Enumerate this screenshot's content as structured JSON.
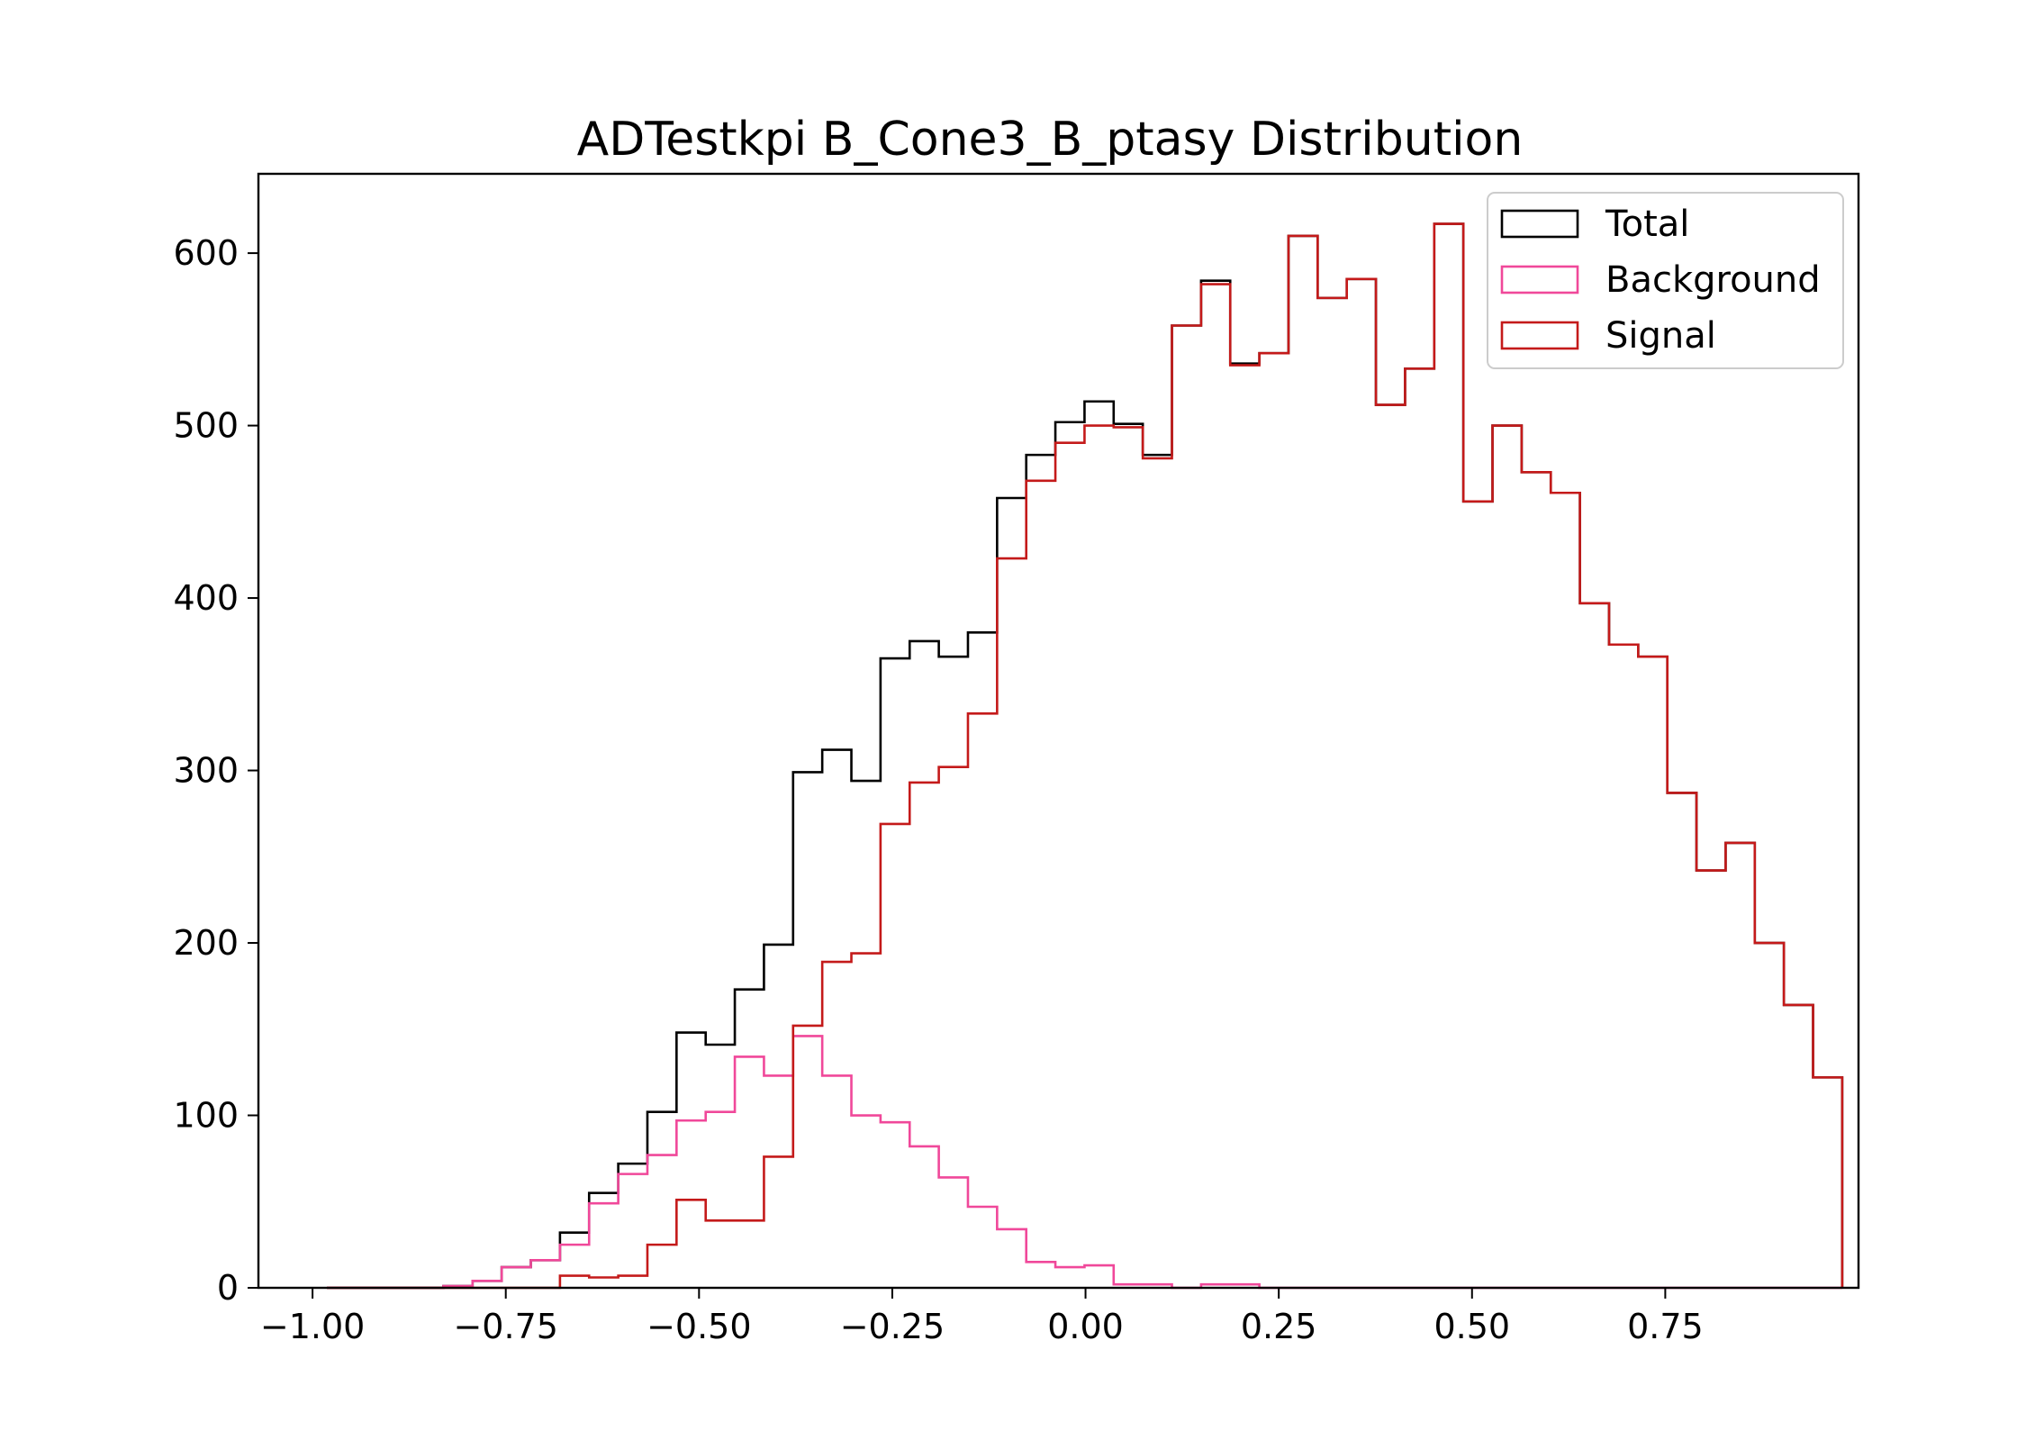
{
  "chart_data": {
    "type": "histogram",
    "title": "ADTestkpi B_Cone3_B_ptasy Distribution",
    "xlabel": "",
    "ylabel": "",
    "xlim": [
      -1.07,
      1.0
    ],
    "ylim": [
      0,
      646
    ],
    "xticks": [
      -1.0,
      -0.75,
      -0.5,
      -0.25,
      0.0,
      0.25,
      0.5,
      0.75
    ],
    "xtick_labels": [
      "−1.00",
      "−0.75",
      "−0.50",
      "−0.25",
      "0.00",
      "0.25",
      "0.50",
      "0.75"
    ],
    "yticks": [
      0,
      100,
      200,
      300,
      400,
      500,
      600
    ],
    "ytick_labels": [
      "0",
      "100",
      "200",
      "300",
      "400",
      "500",
      "600"
    ],
    "bin_start": -0.9815,
    "bin_width": 0.0377,
    "legend_position": "upper right",
    "series": [
      {
        "name": "Total",
        "color": "#000000",
        "counts": [
          0,
          0,
          0,
          0,
          1,
          4,
          12,
          16,
          32,
          55,
          72,
          102,
          148,
          141,
          173,
          199,
          299,
          312,
          294,
          365,
          375,
          366,
          380,
          458,
          483,
          502,
          514,
          501,
          483,
          558,
          584,
          536,
          542,
          610,
          574,
          585,
          512,
          533,
          617,
          456,
          500,
          473,
          461,
          397,
          373,
          366,
          287,
          242,
          258,
          200,
          164,
          122
        ]
      },
      {
        "name": "Background",
        "color": "#f0489a",
        "counts": [
          0,
          0,
          0,
          0,
          1,
          4,
          12,
          16,
          25,
          49,
          66,
          77,
          97,
          102,
          134,
          123,
          146,
          123,
          100,
          96,
          82,
          64,
          47,
          34,
          15,
          12,
          13,
          2,
          2,
          0,
          2,
          2,
          0,
          0,
          0,
          0,
          0,
          0,
          0,
          0,
          0,
          0,
          0,
          0,
          0,
          0,
          0,
          0,
          0,
          0,
          0,
          0
        ]
      },
      {
        "name": "Signal",
        "color": "#c41a1a",
        "counts": [
          0,
          0,
          0,
          0,
          0,
          0,
          0,
          0,
          7,
          6,
          7,
          25,
          51,
          39,
          39,
          76,
          152,
          189,
          194,
          269,
          293,
          302,
          333,
          423,
          468,
          490,
          500,
          499,
          481,
          558,
          582,
          535,
          542,
          610,
          574,
          585,
          512,
          533,
          617,
          456,
          500,
          473,
          461,
          397,
          373,
          366,
          287,
          242,
          258,
          200,
          164,
          122
        ]
      }
    ]
  }
}
